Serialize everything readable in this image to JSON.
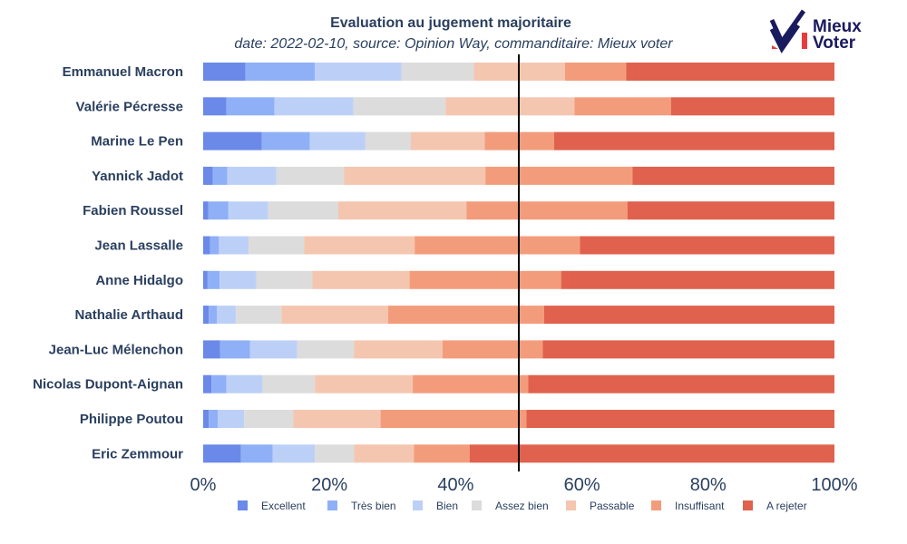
{
  "title": "Evaluation au jugement majoritaire",
  "subtitle": "date: 2022-02-10, source: Opinion Way, commanditaire: Mieux voter",
  "logo": {
    "line1": "Mieux",
    "line2": "Voter",
    "colors": [
      "#1a1a5e",
      "#e83c3c"
    ]
  },
  "chart_data": {
    "type": "bar",
    "orientation": "horizontal",
    "stacked": true,
    "xlim": [
      0,
      100
    ],
    "x_ticks": [
      "0%",
      "20%",
      "40%",
      "60%",
      "80%",
      "100%"
    ],
    "median_line": 50,
    "legend_position": "bottom",
    "categories": [
      "Emmanuel Macron",
      "Valérie Pécresse",
      "Marine Le Pen",
      "Yannick Jadot",
      "Fabien Roussel",
      "Jean Lassalle",
      "Anne Hidalgo",
      "Nathalie Arthaud",
      "Jean-Luc Mélenchon",
      "Nicolas Dupont-Aignan",
      "Philippe Poutou",
      "Eric Zemmour"
    ],
    "series": [
      {
        "name": "Excellent",
        "color": "#6a89e8",
        "values": [
          6.7,
          3.7,
          9.3,
          1.5,
          0.8,
          1.1,
          0.7,
          0.9,
          2.7,
          1.3,
          0.9,
          6.0
        ]
      },
      {
        "name": "Très bien",
        "color": "#8fb0f7",
        "values": [
          11.0,
          7.6,
          7.6,
          2.3,
          3.2,
          1.4,
          1.9,
          1.3,
          4.7,
          2.4,
          1.4,
          5.0
        ]
      },
      {
        "name": "Bien",
        "color": "#bcd0f7",
        "values": [
          13.7,
          12.5,
          8.8,
          7.8,
          6.3,
          4.7,
          5.8,
          3.0,
          7.5,
          5.7,
          4.2,
          6.7
        ]
      },
      {
        "name": "Assez bien",
        "color": "#dcdcdc",
        "values": [
          11.5,
          14.6,
          7.2,
          10.7,
          11.1,
          8.8,
          8.9,
          7.2,
          9.0,
          8.3,
          7.8,
          6.2
        ]
      },
      {
        "name": "Passable",
        "color": "#f4c6b0",
        "values": [
          14.4,
          20.4,
          11.7,
          22.4,
          20.3,
          17.5,
          15.4,
          16.9,
          14.0,
          15.5,
          13.8,
          9.5
        ]
      },
      {
        "name": "Insuffisant",
        "color": "#f39c7c",
        "values": [
          9.7,
          15.3,
          11.0,
          23.3,
          25.5,
          26.2,
          24.0,
          24.7,
          15.9,
          18.3,
          23.1,
          8.8
        ]
      },
      {
        "name": "A rejeter",
        "color": "#e0614d",
        "values": [
          33.0,
          25.9,
          44.4,
          32.0,
          32.8,
          40.3,
          43.3,
          46.0,
          46.2,
          48.5,
          48.8,
          57.8
        ]
      }
    ]
  }
}
